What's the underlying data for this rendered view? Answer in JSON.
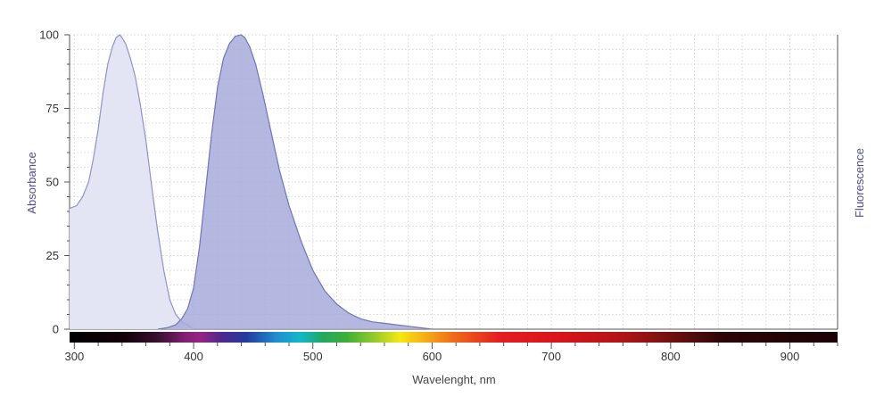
{
  "chart_data": {
    "type": "area",
    "xlabel": "Wavelenght, nm",
    "ylabel_left": "Absorbance",
    "ylabel_right": "Fluorescence",
    "xlim": [
      296,
      940
    ],
    "ylim": [
      0,
      100
    ],
    "x_ticks": [
      "300",
      "400",
      "500",
      "600",
      "700",
      "800",
      "900"
    ],
    "y_ticks": [
      "0",
      "25",
      "50",
      "75",
      "100"
    ],
    "grid": true,
    "spectrum_bar": true,
    "colors": {
      "absorbance_fill": "#e3e4f3",
      "absorbance_line": "#8e93c8",
      "fluorescence_fill": "#a7acda",
      "fluorescence_line": "#7076b8",
      "axis_label": "#4b4f8c",
      "grid": "#e2e2e2"
    },
    "series": [
      {
        "name": "Absorbance",
        "x": [
          296,
          302,
          307,
          312,
          316,
          320,
          324,
          328,
          332,
          335,
          338,
          340,
          343,
          347,
          351,
          355,
          360,
          365,
          370,
          375,
          380,
          385,
          390,
          395,
          398,
          400
        ],
        "y": [
          41,
          42,
          45,
          50,
          58,
          68,
          80,
          90,
          96,
          99,
          100,
          99,
          97,
          92,
          86,
          77,
          64,
          48,
          33,
          20,
          10,
          5,
          2.5,
          1.5,
          0.5,
          0
        ]
      },
      {
        "name": "Fluorescence",
        "x": [
          370,
          378,
          385,
          390,
          395,
          400,
          405,
          410,
          415,
          420,
          425,
          430,
          435,
          440,
          443,
          447,
          452,
          458,
          465,
          472,
          480,
          490,
          500,
          510,
          520,
          530,
          540,
          550,
          560,
          570,
          580,
          590,
          600
        ],
        "y": [
          0,
          0.5,
          1.5,
          3.5,
          7,
          14,
          28,
          47,
          66,
          82,
          92,
          97,
          99.5,
          100,
          99,
          96,
          90,
          80,
          67,
          54,
          42,
          30,
          20,
          13,
          8.5,
          5.5,
          3.5,
          2.5,
          2,
          1.5,
          1,
          0.5,
          0
        ]
      }
    ]
  }
}
